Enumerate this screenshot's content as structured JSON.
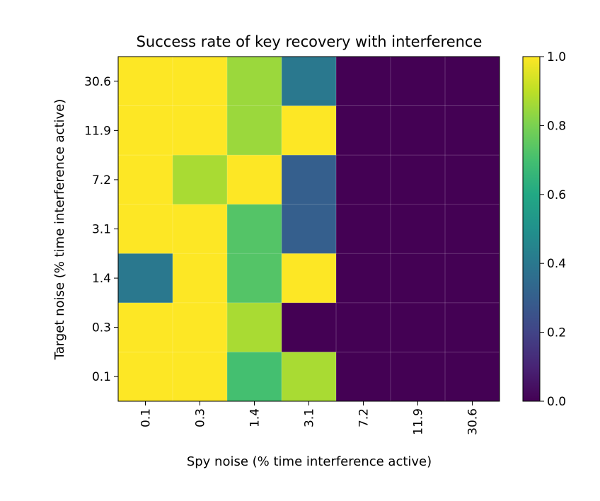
{
  "chart_data": {
    "type": "heatmap",
    "title": "Success rate of key recovery with interference",
    "xlabel": "Spy noise (% time interference active)",
    "ylabel": "Target noise (% time interference active)",
    "x_categories": [
      "0.1",
      "0.3",
      "1.4",
      "3.1",
      "7.2",
      "11.9",
      "30.6"
    ],
    "y_categories": [
      "30.6",
      "11.9",
      "7.2",
      "3.1",
      "1.4",
      "0.3",
      "0.1"
    ],
    "values": [
      [
        1.0,
        1.0,
        0.85,
        0.4,
        0.0,
        0.0,
        0.0
      ],
      [
        1.0,
        1.0,
        0.85,
        1.0,
        0.0,
        0.0,
        0.0
      ],
      [
        1.0,
        0.87,
        1.0,
        0.3,
        0.0,
        0.0,
        0.0
      ],
      [
        1.0,
        1.0,
        0.73,
        0.3,
        0.0,
        0.0,
        0.0
      ],
      [
        0.4,
        1.0,
        0.73,
        1.0,
        0.0,
        0.0,
        0.0
      ],
      [
        1.0,
        1.0,
        0.87,
        0.0,
        0.0,
        0.0,
        0.0
      ],
      [
        1.0,
        1.0,
        0.7,
        0.87,
        0.0,
        0.0,
        0.0
      ]
    ],
    "colorbar": {
      "colormap": "viridis",
      "range": [
        0.0,
        1.0
      ],
      "ticks": [
        "0.0",
        "0.2",
        "0.4",
        "0.6",
        "0.8",
        "1.0"
      ]
    }
  }
}
